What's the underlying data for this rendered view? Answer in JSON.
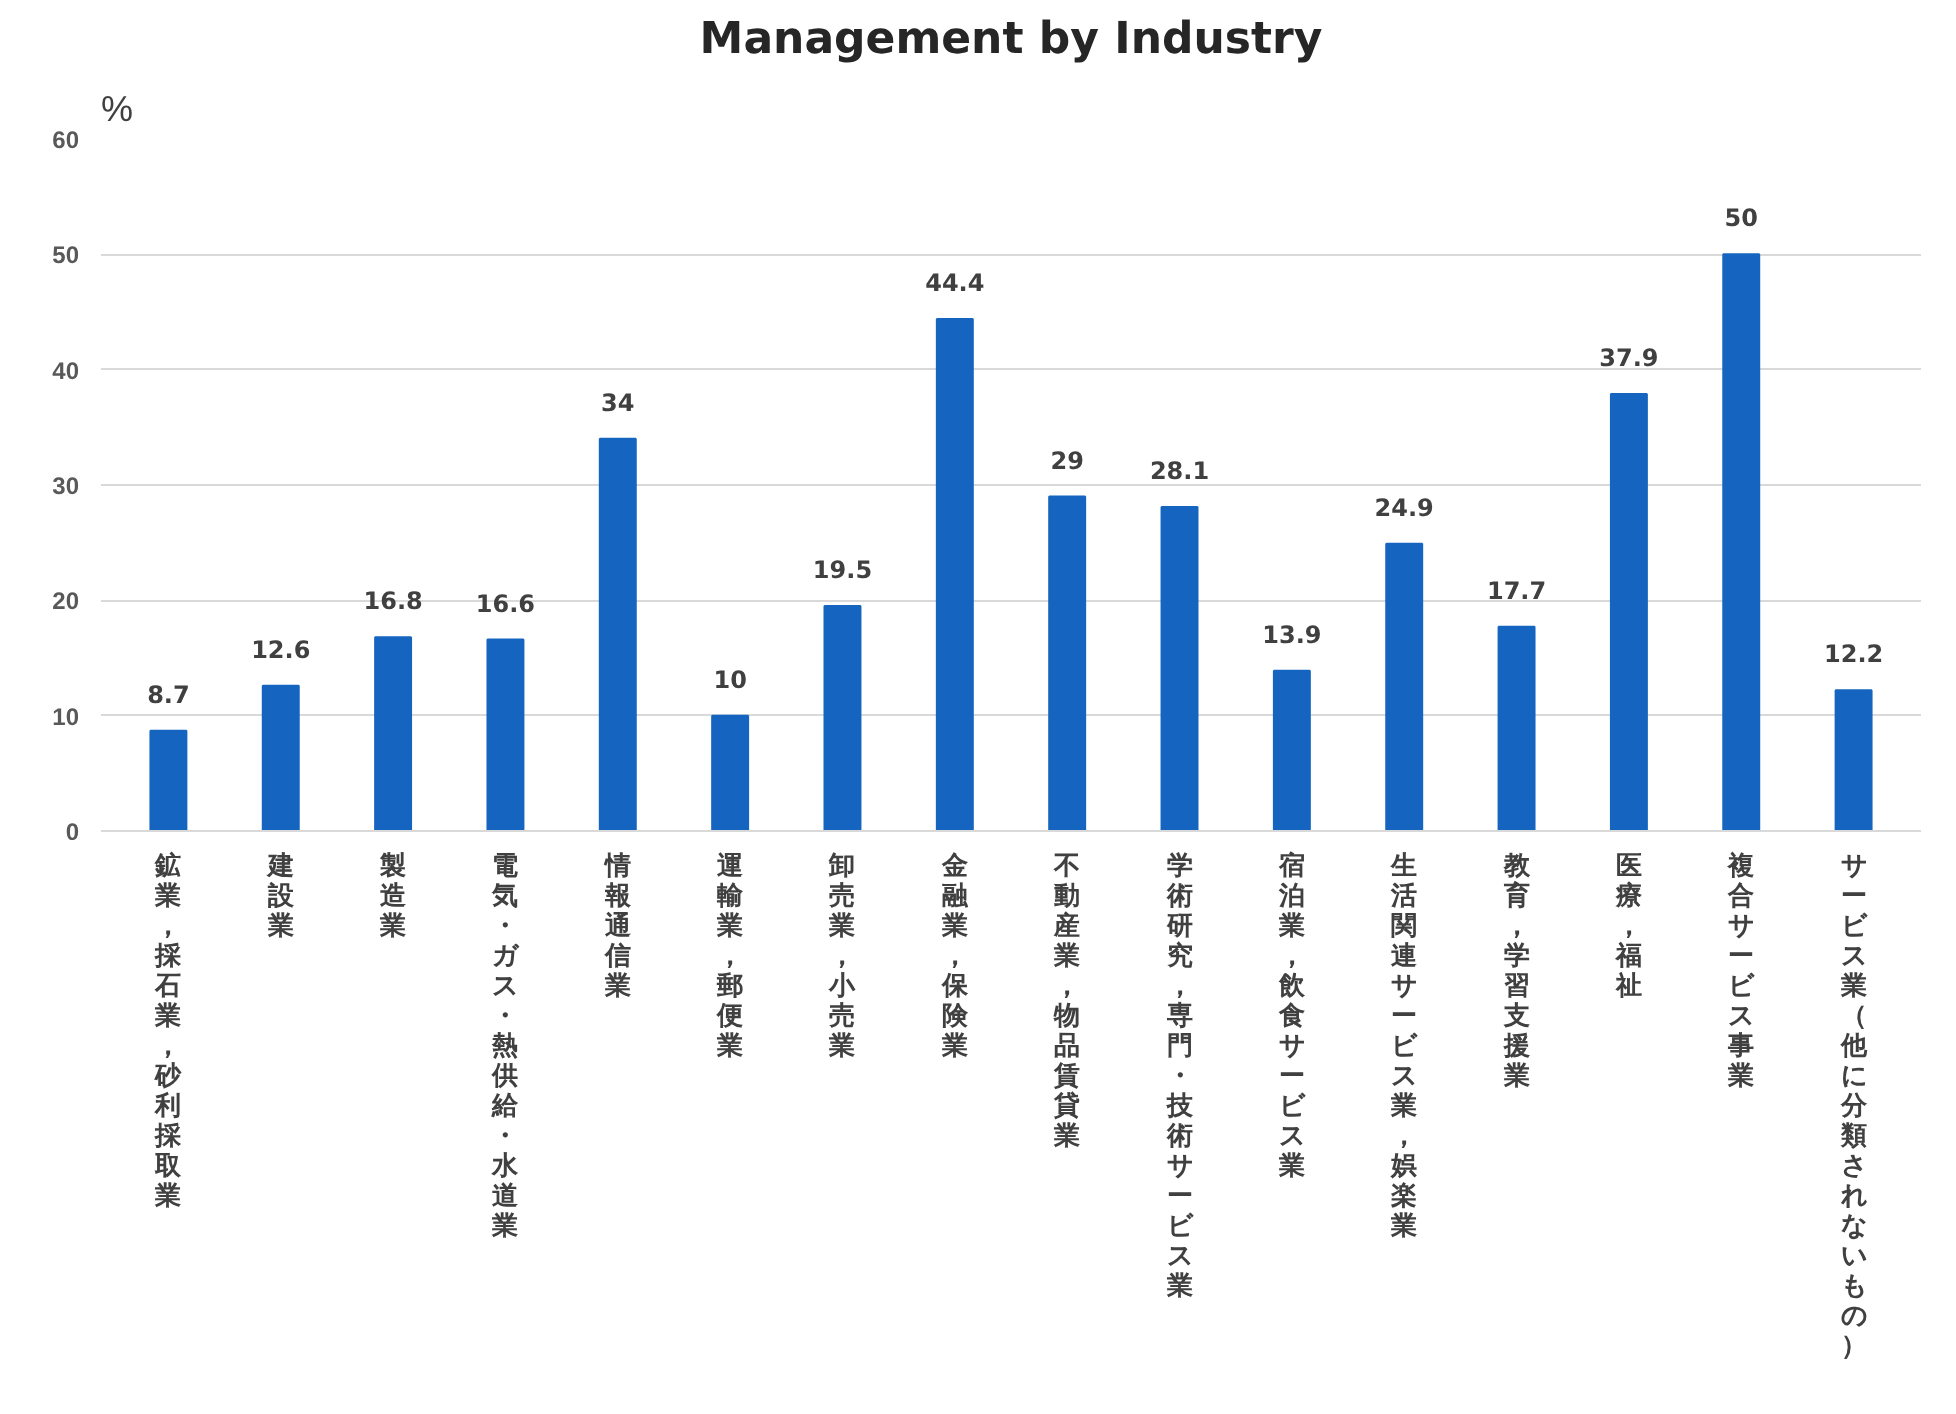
{
  "chart_data": {
    "type": "bar",
    "title": "Management by Industry",
    "ylabel": "%",
    "categories": [
      "鉱業，採石業，砂利採取業",
      "建設業",
      "製造業",
      "電気・ガス・熱供給・水道業",
      "情報通信業",
      "運輸業，郵便業",
      "卸売業，小売業",
      "金融業，保険業",
      "不動産業，物品賃貸業",
      "学術研究，専門・技術サービス業",
      "宿泊業，飲食サービス業",
      "生活関連サービス業，娯楽業",
      "教育，学習支援業",
      "医療，福祉",
      "複合サービス事業",
      "サービス業（他に分類されないもの）"
    ],
    "values": [
      8.7,
      12.6,
      16.8,
      16.6,
      34,
      10,
      19.5,
      44.4,
      29,
      28.1,
      13.9,
      24.9,
      17.7,
      37.9,
      50,
      12.2
    ],
    "color": "#1565c0",
    "ylim": [
      0,
      60
    ],
    "yticks": [
      0,
      10,
      20,
      30,
      40,
      50,
      60
    ],
    "grid": "y",
    "data_labels": true
  }
}
